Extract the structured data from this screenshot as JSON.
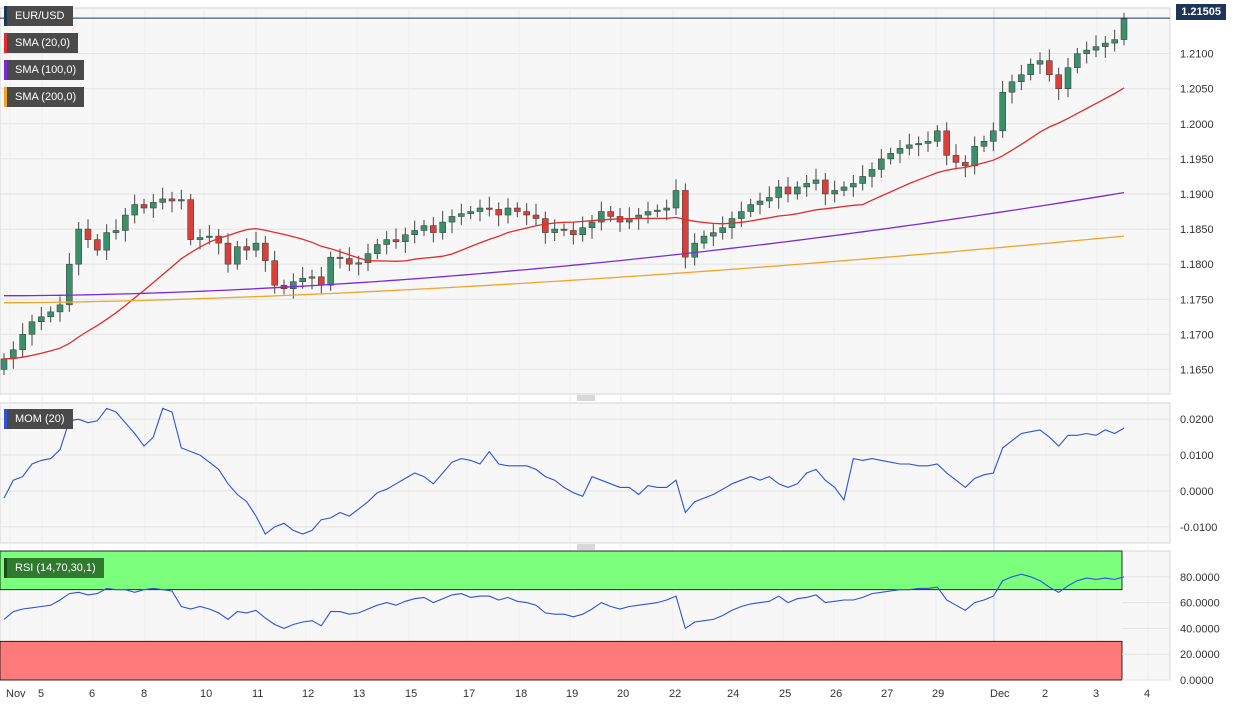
{
  "instrument": "EUR/USD",
  "last_price": "1.21505",
  "colors": {
    "up": "#3b8f6a",
    "down": "#d9403a",
    "sma20": "#e32b2b",
    "sma100": "#7b2bd6",
    "sma200": "#f0a52a",
    "mom": "#2a55d8",
    "rsi": "#2a55d8",
    "rsi_overbought": "#7cff7c",
    "rsi_oversold": "#ff7b7b"
  },
  "legend": {
    "main": [
      "EUR/USD",
      "SMA (20,0)",
      "SMA (100,0)",
      "SMA (200,0)"
    ],
    "mom": "MOM (20)",
    "rsi": "RSI (14,70,30,1)"
  },
  "chart_data": [
    {
      "type": "candlestick",
      "title": "EUR/USD",
      "ylim": [
        1.1615,
        1.2165
      ],
      "y_ticks": [
        "1.2100",
        "1.2050",
        "1.2000",
        "1.1950",
        "1.1900",
        "1.1850",
        "1.1800",
        "1.1750",
        "1.1700",
        "1.1650"
      ],
      "x_ticks": [
        "Nov",
        "5",
        "6",
        "8",
        "10",
        "11",
        "12",
        "13",
        "15",
        "17",
        "18",
        "19",
        "20",
        "22",
        "24",
        "25",
        "26",
        "27",
        "29",
        "Dec",
        "2",
        "3",
        "4"
      ],
      "candles_close": [
        1.1665,
        1.1678,
        1.17,
        1.1718,
        1.1725,
        1.1732,
        1.1742,
        1.18,
        1.185,
        1.1835,
        1.182,
        1.1845,
        1.1848,
        1.187,
        1.1885,
        1.188,
        1.1888,
        1.1893,
        1.189,
        1.1892,
        1.1835,
        1.1838,
        1.184,
        1.183,
        1.18,
        1.1825,
        1.182,
        1.183,
        1.1805,
        1.177,
        1.1765,
        1.1775,
        1.178,
        1.1782,
        1.177,
        1.181,
        1.1808,
        1.18,
        1.1802,
        1.1815,
        1.1828,
        1.1835,
        1.1832,
        1.1842,
        1.1848,
        1.1855,
        1.1845,
        1.186,
        1.1868,
        1.1872,
        1.1875,
        1.188,
        1.1878,
        1.187,
        1.188,
        1.1875,
        1.187,
        1.1865,
        1.1845,
        1.185,
        1.1848,
        1.1842,
        1.1852,
        1.186,
        1.1875,
        1.1868,
        1.186,
        1.1865,
        1.187,
        1.1875,
        1.1877,
        1.188,
        1.1905,
        1.181,
        1.183,
        1.184,
        1.1845,
        1.1852,
        1.1865,
        1.1875,
        1.1885,
        1.189,
        1.1895,
        1.191,
        1.19,
        1.191,
        1.1915,
        1.192,
        1.19,
        1.1905,
        1.191,
        1.1915,
        1.1925,
        1.1935,
        1.195,
        1.1958,
        1.1965,
        1.197,
        1.1972,
        1.1975,
        1.199,
        1.1955,
        1.1945,
        1.194,
        1.1968,
        1.1975,
        1.199,
        1.2045,
        1.206,
        1.207,
        1.2085,
        1.209,
        1.207,
        1.205,
        1.208,
        1.21,
        1.2105,
        1.211,
        1.2115,
        1.212,
        1.215
      ],
      "sma20_endpoints": {
        "start": 1.1665,
        "end": 1.2045
      },
      "sma100_endpoints": {
        "start": 1.1755,
        "end": 1.1902
      },
      "sma200_endpoints": {
        "start": 1.1745,
        "end": 1.184
      }
    },
    {
      "type": "line",
      "title": "MOM (20)",
      "ylim": [
        -0.0145,
        0.0245
      ],
      "y_ticks": [
        "0.0200",
        "0.0100",
        "0.0000",
        "-0.0100"
      ],
      "values": [
        -0.002,
        0.003,
        0.004,
        0.0075,
        0.0085,
        0.009,
        0.0115,
        0.0195,
        0.02,
        0.019,
        0.0195,
        0.023,
        0.022,
        0.019,
        0.016,
        0.0125,
        0.015,
        0.023,
        0.022,
        0.012,
        0.011,
        0.01,
        0.008,
        0.006,
        0.002,
        -0.001,
        -0.003,
        -0.007,
        -0.012,
        -0.01,
        -0.009,
        -0.011,
        -0.012,
        -0.011,
        -0.008,
        -0.0075,
        -0.006,
        -0.007,
        -0.005,
        -0.003,
        -0.0005,
        0.0005,
        0.002,
        0.0035,
        0.005,
        0.004,
        0.002,
        0.005,
        0.008,
        0.009,
        0.0085,
        0.0075,
        0.011,
        0.0075,
        0.007,
        0.007,
        0.007,
        0.006,
        0.004,
        0.003,
        0.001,
        -0.0005,
        -0.0015,
        0.004,
        0.003,
        0.002,
        0.001,
        0.001,
        -0.001,
        0.0015,
        0.001,
        0.001,
        0.003,
        -0.006,
        -0.003,
        -0.002,
        -0.001,
        0.0005,
        0.002,
        0.003,
        0.004,
        0.003,
        0.004,
        0.002,
        0.001,
        0.002,
        0.005,
        0.006,
        0.003,
        0.001,
        -0.0025,
        0.009,
        0.0085,
        0.009,
        0.0085,
        0.008,
        0.0075,
        0.0075,
        0.007,
        0.007,
        0.0075,
        0.005,
        0.003,
        0.001,
        0.0035,
        0.0045,
        0.005,
        0.012,
        0.014,
        0.016,
        0.0165,
        0.017,
        0.015,
        0.0125,
        0.0155,
        0.0155,
        0.016,
        0.0155,
        0.017,
        0.016,
        0.0175
      ]
    },
    {
      "type": "line",
      "title": "RSI (14,70,30,1)",
      "ylim": [
        0,
        100
      ],
      "y_ticks": [
        "80.0000",
        "60.0000",
        "40.0000",
        "20.0000",
        "0.0000"
      ],
      "overbought": 70,
      "oversold": 30,
      "values": [
        47,
        53,
        55,
        56,
        57,
        58,
        62,
        67,
        68,
        66,
        67,
        71,
        70,
        70,
        68,
        70,
        71,
        70,
        69,
        57,
        55,
        57,
        55,
        52,
        47,
        53,
        52,
        54,
        48,
        43,
        40,
        43,
        45,
        46,
        42,
        53,
        53,
        51,
        52,
        55,
        58,
        60,
        58,
        61,
        63,
        64,
        60,
        63,
        66,
        67,
        64,
        65,
        65,
        62,
        64,
        61,
        60,
        58,
        52,
        51,
        51,
        49,
        51,
        55,
        60,
        57,
        55,
        57,
        58,
        59,
        60,
        62,
        65,
        40,
        45,
        46,
        47,
        50,
        54,
        57,
        59,
        60,
        61,
        65,
        60,
        63,
        64,
        66,
        60,
        61,
        62,
        62,
        64,
        67,
        68,
        69,
        70,
        70,
        71,
        71,
        72,
        62,
        58,
        54,
        60,
        62,
        65,
        77,
        80,
        82,
        80,
        77,
        72,
        68,
        73,
        77,
        79,
        78,
        79,
        78,
        80
      ]
    }
  ],
  "axis_days": [
    "Nov",
    "5",
    "6",
    "8",
    "10",
    "11",
    "12",
    "13",
    "15",
    "17",
    "18",
    "19",
    "20",
    "22",
    "24",
    "25",
    "26",
    "27",
    "29",
    "Dec",
    "2",
    "3",
    "4"
  ]
}
